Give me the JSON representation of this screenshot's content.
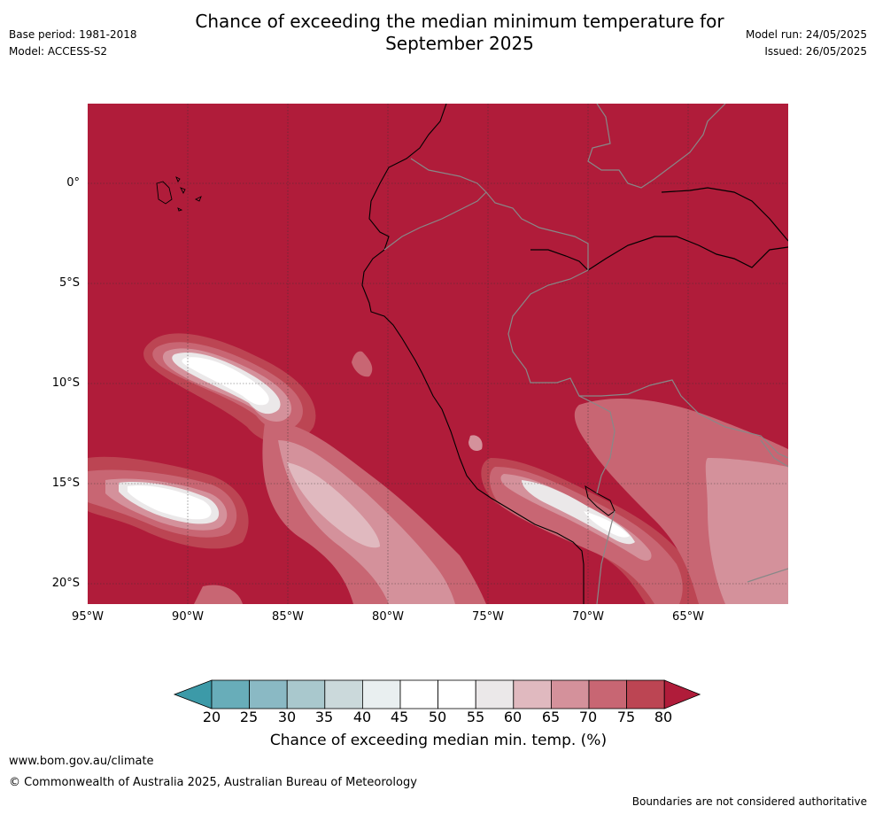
{
  "title_line1": "Chance of exceeding the median minimum temperature for",
  "title_line2": "September 2025",
  "base_period": "Base period: 1981-2018",
  "model": "Model: ACCESS-S2",
  "model_run": "Model run: 24/05/2025",
  "issued": "Issued: 26/05/2025",
  "lat_labels": [
    "0°",
    "5°S",
    "10°S",
    "15°S",
    "20°S"
  ],
  "lon_labels": [
    "95°W",
    "90°W",
    "85°W",
    "80°W",
    "75°W",
    "70°W",
    "65°W"
  ],
  "colorbar": {
    "ticks": [
      "20",
      "25",
      "30",
      "35",
      "40",
      "45",
      "50",
      "55",
      "60",
      "65",
      "70",
      "75",
      "80"
    ],
    "label": "Chance of exceeding median min. temp. (%)",
    "colors": [
      "#3c9aa8",
      "#68adb9",
      "#8ab9c4",
      "#a9c8cd",
      "#cbd9db",
      "#e9eff0",
      "#ffffff",
      "#ffffff",
      "#ebe8e9",
      "#e0b9bf",
      "#d4919b",
      "#c86673",
      "#bc4553",
      "#b01c3a"
    ]
  },
  "website": "www.bom.gov.au/climate",
  "copyright": "© Commonwealth of Australia 2025, Australian Bureau of Meteorology",
  "disclaimer": "Boundaries are not considered authoritative"
}
